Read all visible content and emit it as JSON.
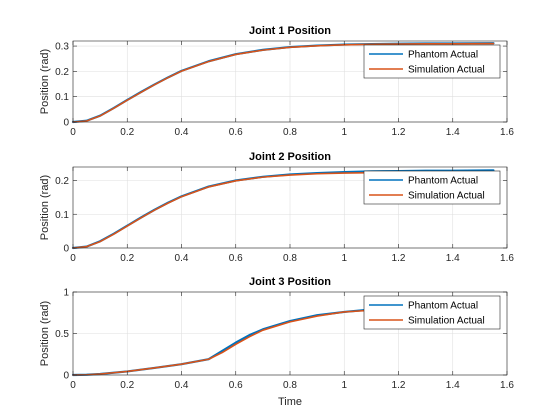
{
  "colors": {
    "background": "#ffffff",
    "grid": "#dfdfdf",
    "axis": "#262626",
    "series_1": "#0072BD",
    "series_2": "#D95319"
  },
  "chart_data": [
    {
      "type": "line",
      "title": "Joint 1 Position",
      "xlabel": "",
      "ylabel": "Position (rad)",
      "xlim": [
        0,
        1.6
      ],
      "ylim": [
        0,
        0.32
      ],
      "xticks": [
        0,
        0.2,
        0.4,
        0.6,
        0.8,
        1,
        1.2,
        1.4,
        1.6
      ],
      "xtick_labels": [
        "0",
        "0.2",
        "0.4",
        "0.6",
        "0.8",
        "1",
        "1.2",
        "1.4",
        "1.6"
      ],
      "yticks": [
        0,
        0.1,
        0.2,
        0.3
      ],
      "ytick_labels": [
        "0",
        "0.1",
        "0.2",
        "0.3"
      ],
      "grid": true,
      "legend_position": "top-right",
      "x": [
        0,
        0.05,
        0.1,
        0.15,
        0.2,
        0.25,
        0.3,
        0.35,
        0.4,
        0.5,
        0.6,
        0.7,
        0.8,
        0.9,
        1.0,
        1.1,
        1.2,
        1.3,
        1.4,
        1.55
      ],
      "series": [
        {
          "name": "Phantom Actual",
          "color": "#0072BD",
          "values": [
            0,
            0.005,
            0.025,
            0.055,
            0.087,
            0.118,
            0.148,
            0.176,
            0.202,
            0.24,
            0.268,
            0.285,
            0.296,
            0.302,
            0.306,
            0.308,
            0.309,
            0.31,
            0.31,
            0.311
          ]
        },
        {
          "name": "Simulation Actual",
          "color": "#D95319",
          "values": [
            0,
            0.004,
            0.024,
            0.054,
            0.086,
            0.117,
            0.147,
            0.175,
            0.201,
            0.239,
            0.267,
            0.284,
            0.295,
            0.301,
            0.305,
            0.307,
            0.308,
            0.309,
            0.309,
            0.31
          ]
        }
      ]
    },
    {
      "type": "line",
      "title": "Joint 2 Position",
      "xlabel": "",
      "ylabel": "Position (rad)",
      "xlim": [
        0,
        1.6
      ],
      "ylim": [
        0,
        0.24
      ],
      "xticks": [
        0,
        0.2,
        0.4,
        0.6,
        0.8,
        1,
        1.2,
        1.4,
        1.6
      ],
      "xtick_labels": [
        "0",
        "0.2",
        "0.4",
        "0.6",
        "0.8",
        "1",
        "1.2",
        "1.4",
        "1.6"
      ],
      "yticks": [
        0,
        0.1,
        0.2
      ],
      "ytick_labels": [
        "0",
        "0.1",
        "0.2"
      ],
      "grid": true,
      "legend_position": "top-right",
      "x": [
        0,
        0.05,
        0.1,
        0.15,
        0.2,
        0.25,
        0.3,
        0.35,
        0.4,
        0.5,
        0.6,
        0.7,
        0.8,
        0.9,
        1.0,
        1.1,
        1.2,
        1.3,
        1.4,
        1.55
      ],
      "series": [
        {
          "name": "Phantom Actual",
          "color": "#0072BD",
          "values": [
            0,
            0.004,
            0.02,
            0.042,
            0.066,
            0.09,
            0.113,
            0.134,
            0.153,
            0.182,
            0.2,
            0.211,
            0.218,
            0.222,
            0.225,
            0.227,
            0.228,
            0.229,
            0.229,
            0.23
          ]
        },
        {
          "name": "Simulation Actual",
          "color": "#D95319",
          "values": [
            0,
            0.004,
            0.019,
            0.041,
            0.065,
            0.089,
            0.112,
            0.133,
            0.152,
            0.181,
            0.199,
            0.21,
            0.216,
            0.22,
            0.222,
            0.223,
            0.224,
            0.225,
            0.225,
            0.225
          ]
        }
      ]
    },
    {
      "type": "line",
      "title": "Joint 3 Position",
      "xlabel": "Time",
      "ylabel": "Position (rad)",
      "xlim": [
        0,
        1.6
      ],
      "ylim": [
        0,
        1
      ],
      "xticks": [
        0,
        0.2,
        0.4,
        0.6,
        0.8,
        1,
        1.2,
        1.4,
        1.6
      ],
      "xtick_labels": [
        "0",
        "0.2",
        "0.4",
        "0.6",
        "0.8",
        "1",
        "1.2",
        "1.4",
        "1.6"
      ],
      "yticks": [
        0,
        0.5,
        1
      ],
      "ytick_labels": [
        "0",
        "0.5",
        "1"
      ],
      "grid": true,
      "legend_position": "top-right",
      "x": [
        0,
        0.05,
        0.1,
        0.2,
        0.3,
        0.4,
        0.5,
        0.55,
        0.6,
        0.65,
        0.7,
        0.8,
        0.9,
        1.0,
        1.1,
        1.2,
        1.3,
        1.4,
        1.55
      ],
      "series": [
        {
          "name": "Phantom Actual",
          "color": "#0072BD",
          "values": [
            0,
            0.003,
            0.012,
            0.043,
            0.085,
            0.13,
            0.19,
            0.29,
            0.39,
            0.48,
            0.55,
            0.65,
            0.72,
            0.76,
            0.79,
            0.8,
            0.81,
            0.815,
            0.82
          ]
        },
        {
          "name": "Simulation Actual",
          "color": "#D95319",
          "values": [
            0,
            0.003,
            0.012,
            0.043,
            0.085,
            0.13,
            0.19,
            0.27,
            0.37,
            0.46,
            0.54,
            0.64,
            0.71,
            0.76,
            0.78,
            0.8,
            0.81,
            0.815,
            0.82
          ]
        }
      ]
    }
  ]
}
